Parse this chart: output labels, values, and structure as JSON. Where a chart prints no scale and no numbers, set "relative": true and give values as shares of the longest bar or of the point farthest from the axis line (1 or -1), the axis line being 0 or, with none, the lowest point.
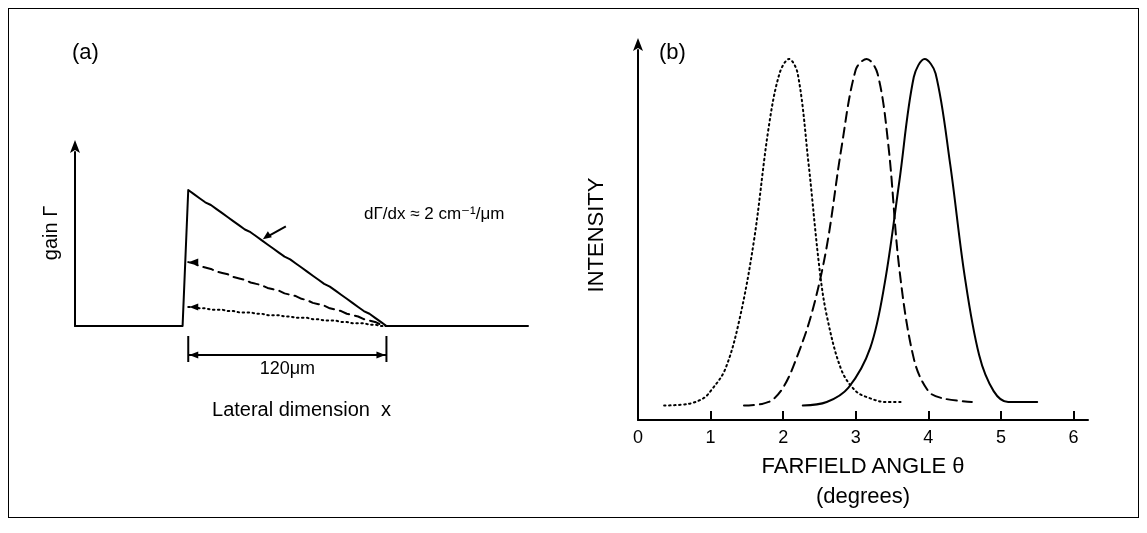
{
  "chart_data": [
    {
      "type": "line",
      "title": "(a)",
      "xlabel": "Lateral dimension  x",
      "ylabel": "gain Γ",
      "relative": true,
      "marker": "none",
      "categories": [
        null,
        null,
        null,
        null,
        null,
        null,
        null,
        null,
        null,
        null,
        null,
        null,
        null,
        null,
        null,
        null,
        null,
        null,
        null,
        null,
        null,
        null,
        null,
        null,
        null,
        null,
        null,
        null,
        null,
        null,
        null,
        null,
        null,
        null,
        null,
        null,
        null,
        null,
        null,
        null,
        null,
        null,
        null,
        null,
        null,
        null,
        null,
        null,
        null,
        null,
        null,
        null,
        null,
        null,
        null,
        null,
        null,
        null,
        null,
        null,
        null,
        null,
        null,
        null,
        null,
        null,
        null,
        null,
        null,
        null,
        null,
        null,
        null,
        null,
        null,
        null,
        null,
        null,
        null,
        null,
        null
      ],
      "series": [
        {
          "color": "#000000",
          "line_style": "solid",
          "values": [
            0,
            0,
            0,
            0,
            0,
            0,
            0,
            0,
            0,
            0,
            0,
            0,
            0,
            0,
            0,
            0,
            0,
            0,
            0,
            0,
            1,
            0.97,
            0.94,
            0.91,
            0.89,
            0.86,
            0.83,
            0.8,
            0.77,
            0.74,
            0.71,
            0.69,
            0.66,
            0.63,
            0.6,
            0.57,
            0.54,
            0.51,
            0.49,
            0.46,
            0.43,
            0.4,
            0.37,
            0.34,
            0.31,
            0.29,
            0.26,
            0.23,
            0.2,
            0.17,
            0.14,
            0.11,
            0.09,
            0.06,
            0.03,
            0,
            0,
            0,
            0,
            0,
            0,
            0,
            0,
            0,
            0,
            0,
            0,
            0,
            0,
            0,
            0,
            0,
            0,
            0,
            0,
            0,
            0,
            0,
            0,
            0,
            0
          ]
        },
        {
          "color": "#000000",
          "line_style": "dashed",
          "values": [
            null,
            null,
            null,
            null,
            null,
            null,
            null,
            null,
            null,
            null,
            null,
            null,
            null,
            null,
            null,
            null,
            null,
            null,
            null,
            null,
            0.47,
            0.46,
            0.44,
            0.43,
            0.42,
            0.4,
            0.39,
            0.38,
            0.36,
            0.35,
            0.34,
            0.32,
            0.31,
            0.3,
            0.28,
            0.27,
            0.26,
            0.24,
            0.23,
            0.22,
            0.2,
            0.19,
            0.17,
            0.16,
            0.15,
            0.13,
            0.12,
            0.11,
            0.09,
            0.08,
            0.07,
            0.05,
            0.04,
            0.03,
            0.01,
            0,
            null,
            null,
            null,
            null,
            null,
            null,
            null,
            null,
            null,
            null,
            null,
            null,
            null,
            null,
            null,
            null,
            null,
            null,
            null,
            null,
            null,
            null,
            null,
            null,
            null
          ]
        },
        {
          "color": "#000000",
          "line_style": "dotted",
          "values": [
            null,
            null,
            null,
            null,
            null,
            null,
            null,
            null,
            null,
            null,
            null,
            null,
            null,
            null,
            null,
            null,
            null,
            null,
            null,
            null,
            0.14,
            0.14,
            0.13,
            0.13,
            0.12,
            0.12,
            0.12,
            0.11,
            0.11,
            0.1,
            0.1,
            0.1,
            0.09,
            0.09,
            0.08,
            0.08,
            0.08,
            0.07,
            0.07,
            0.06,
            0.06,
            0.06,
            0.05,
            0.05,
            0.04,
            0.04,
            0.04,
            0.03,
            0.03,
            0.02,
            0.02,
            0.02,
            0.01,
            0.01,
            0,
            0,
            null,
            null,
            null,
            null,
            null,
            null,
            null,
            null,
            null,
            null,
            null,
            null,
            null,
            null,
            null,
            null,
            null,
            null,
            null,
            null,
            null,
            null,
            null,
            null,
            null
          ]
        }
      ],
      "annotations": [
        "dΓ/dx ≈ 2 cm⁻¹/μm",
        "120μm"
      ]
    },
    {
      "type": "line",
      "title": "(b)",
      "xlabel": "FARFIELD ANGLE θ\n(degrees)",
      "ylabel": "INTENSITY",
      "relative": true,
      "marker": "none",
      "xlim": [
        0,
        6.2
      ],
      "xticks": [
        0,
        1,
        2,
        3,
        4,
        5,
        6
      ],
      "series": [
        {
          "color": "#000000",
          "line_style": "dotted",
          "x": [
            0.36,
            0.7,
            0.9,
            1.0,
            1.2,
            1.4,
            1.6,
            1.8,
            1.95,
            2.08,
            2.2,
            2.35,
            2.5,
            2.6,
            2.8,
            3.0,
            3.2,
            3.4,
            3.64
          ],
          "values": [
            0.04,
            0.045,
            0.06,
            0.08,
            0.14,
            0.28,
            0.5,
            0.81,
            0.96,
            1,
            0.96,
            0.71,
            0.42,
            0.29,
            0.14,
            0.08,
            0.06,
            0.05,
            0.05
          ]
        },
        {
          "color": "#000000",
          "line_style": "dashed",
          "x": [
            1.46,
            1.8,
            2.0,
            2.2,
            2.4,
            2.6,
            2.8,
            3.0,
            3.15,
            3.3,
            3.45,
            3.6,
            3.8,
            4.0,
            4.2,
            4.6
          ],
          "values": [
            0.04,
            0.05,
            0.09,
            0.18,
            0.3,
            0.48,
            0.75,
            0.97,
            1,
            0.96,
            0.76,
            0.42,
            0.17,
            0.08,
            0.06,
            0.05
          ]
        },
        {
          "color": "#000000",
          "line_style": "solid",
          "x": [
            2.27,
            2.6,
            2.9,
            3.2,
            3.4,
            3.6,
            3.8,
            3.95,
            4.1,
            4.3,
            4.5,
            4.7,
            4.9,
            5.1,
            5.5
          ],
          "values": [
            0.04,
            0.05,
            0.09,
            0.2,
            0.38,
            0.66,
            0.95,
            1,
            0.96,
            0.71,
            0.4,
            0.18,
            0.08,
            0.05,
            0.05
          ]
        }
      ]
    }
  ]
}
